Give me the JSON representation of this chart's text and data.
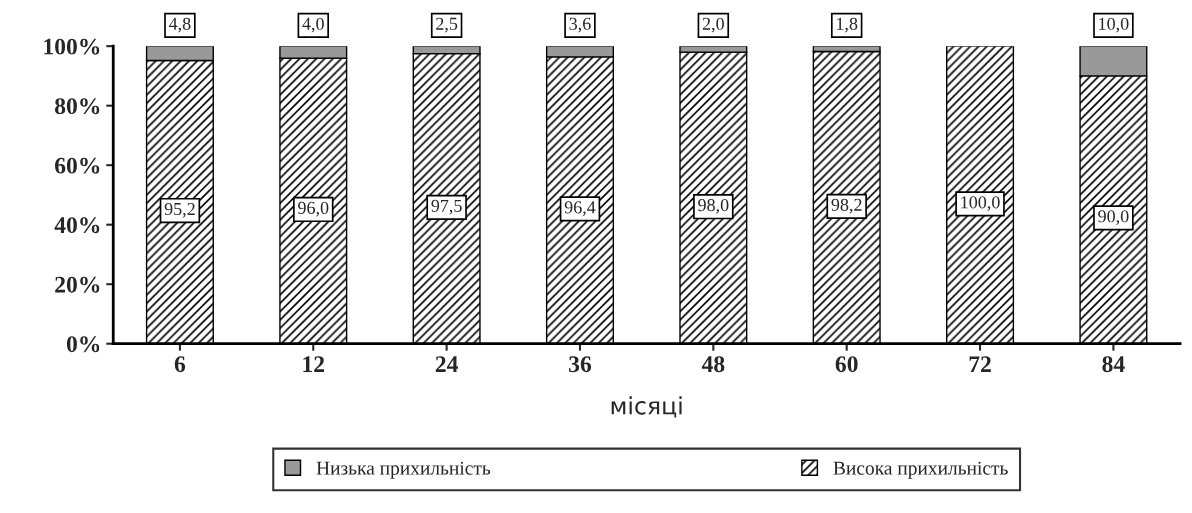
{
  "chart_data": {
    "type": "bar",
    "stacked": true,
    "xlabel": "місяці",
    "categories": [
      "6",
      "12",
      "24",
      "36",
      "48",
      "60",
      "72",
      "84"
    ],
    "series": [
      {
        "name": "Висока прихильність",
        "color": "#000000",
        "values": [
          95.2,
          96.0,
          97.5,
          96.4,
          98.0,
          98.2,
          100.0,
          90.0
        ],
        "value_labels": [
          "95,2",
          "96,0",
          "97,5",
          "96,4",
          "98,0",
          "98,2",
          "100,0",
          "90,0"
        ]
      },
      {
        "name": "Низька прихильність",
        "color": "#999999",
        "values": [
          4.8,
          4.0,
          2.5,
          3.6,
          2.0,
          1.8,
          null,
          10.0
        ],
        "value_labels": [
          "4,8",
          "4,0",
          "2,5",
          "3,6",
          "2,0",
          "1,8",
          null,
          "10,0"
        ]
      }
    ],
    "ylim": [
      0,
      100
    ],
    "yticks": [
      {
        "value": 0,
        "label": "0%"
      },
      {
        "value": 20,
        "label": "20%"
      },
      {
        "value": 40,
        "label": "40%"
      },
      {
        "value": 60,
        "label": "60%"
      },
      {
        "value": 80,
        "label": "80%"
      },
      {
        "value": 100,
        "label": "100%"
      }
    ],
    "grid": false,
    "legend": "bottom"
  }
}
